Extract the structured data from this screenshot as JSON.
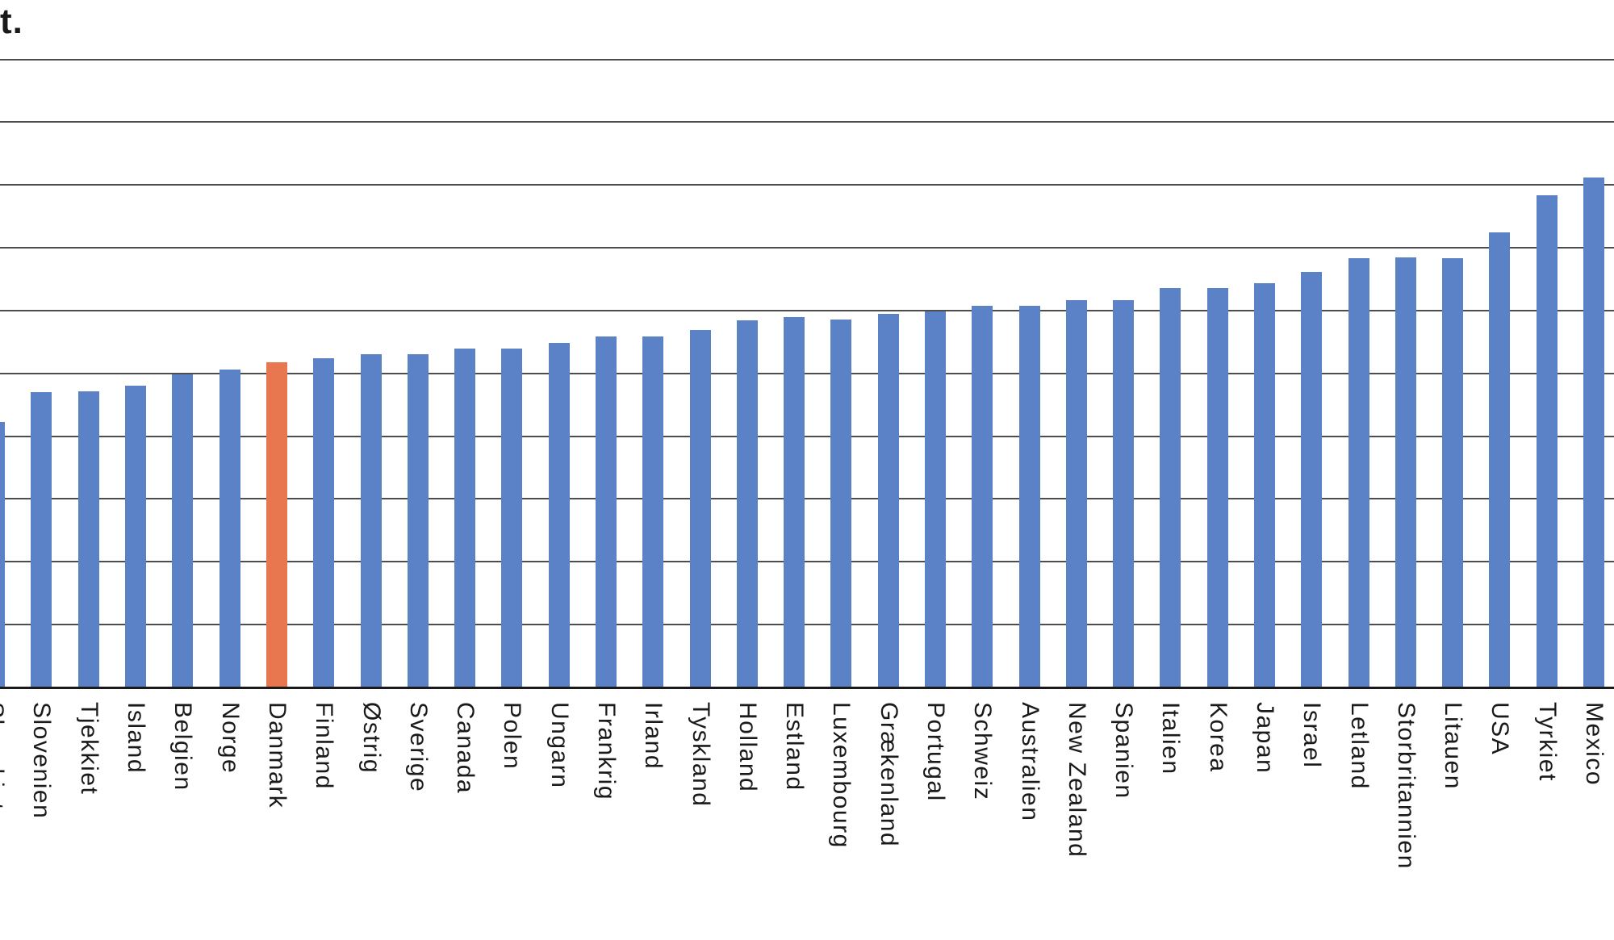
{
  "title_fragment": "t.",
  "chart_data": {
    "type": "bar",
    "title": "t.",
    "note": "cropped chart; only the tail 't.' of the title and no y-axis tick labels are visible; values are expressed in gridline units (baseline 0, one unit per horizontal gridline, 10 gridlines visible)",
    "categories": [
      "Slovakiet",
      "Slovenien",
      "Tjekkiet",
      "Island",
      "Belgien",
      "Norge",
      "Danmark",
      "Finland",
      "Østrig",
      "Sverige",
      "Canada",
      "Polen",
      "Ungarn",
      "Frankrig",
      "Irland",
      "Tyskland",
      "Holland",
      "Estland",
      "Luxembourg",
      "Grækenland",
      "Portugal",
      "Schweiz",
      "Australien",
      "New Zealand",
      "Spanien",
      "Italien",
      "Korea",
      "Japan",
      "Israel",
      "Letland",
      "Storbritannien",
      "Litauen",
      "USA",
      "Tyrkiet",
      "Mexico"
    ],
    "values": [
      4.23,
      4.7,
      4.72,
      4.81,
      4.99,
      5.06,
      5.18,
      5.24,
      5.3,
      5.3,
      5.4,
      5.39,
      5.49,
      5.59,
      5.59,
      5.69,
      5.85,
      5.9,
      5.86,
      5.95,
      5.98,
      6.08,
      6.07,
      6.17,
      6.17,
      6.36,
      6.36,
      6.43,
      6.61,
      6.84,
      6.85,
      6.84,
      7.25,
      7.84,
      8.12
    ],
    "highlight_category": "Danmark",
    "xlabel": "",
    "ylabel": "",
    "ylim": [
      0,
      10
    ],
    "gridline_step": 1,
    "grid": true,
    "legend": false,
    "colors": {
      "bar": "#5B82C6",
      "highlight": "#E8764E",
      "gridline": "#4D4D4D",
      "axis": "#1A1A1A",
      "text": "#1A1A1A"
    }
  }
}
